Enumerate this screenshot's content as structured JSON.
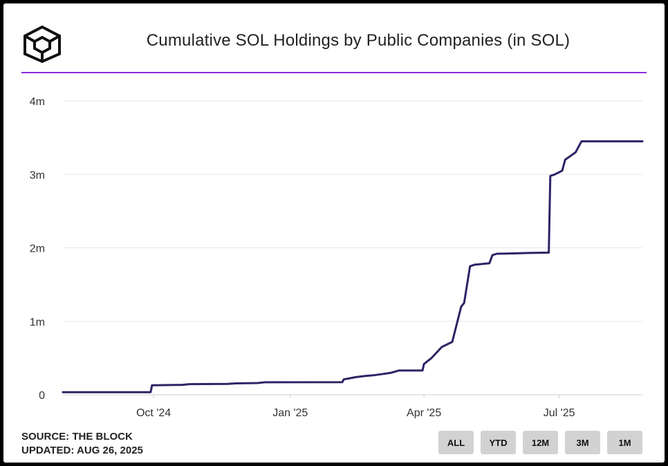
{
  "chart_data": {
    "type": "line",
    "title": "Cumulative SOL Holdings by Public Companies (in SOL)",
    "xlabel": "",
    "ylabel": "",
    "y_ticks": [
      {
        "value": 0,
        "label": "0"
      },
      {
        "value": 1000000,
        "label": "1m"
      },
      {
        "value": 2000000,
        "label": "2m"
      },
      {
        "value": 3000000,
        "label": "3m"
      },
      {
        "value": 4000000,
        "label": "4m"
      }
    ],
    "ylim": [
      0,
      4000000
    ],
    "x_ticks": [
      {
        "date": "2024-10-01",
        "label": "Oct '24"
      },
      {
        "date": "2025-01-01",
        "label": "Jan '25"
      },
      {
        "date": "2025-04-01",
        "label": "Apr '25"
      },
      {
        "date": "2025-07-01",
        "label": "Jul '25"
      }
    ],
    "xlim": [
      "2024-08-01",
      "2025-08-26"
    ],
    "grid": true,
    "series_color": "#2b2464",
    "series": [
      {
        "name": "",
        "points": [
          [
            "2024-08-01",
            35000
          ],
          [
            "2024-09-29",
            35000
          ],
          [
            "2024-09-30",
            130000
          ],
          [
            "2024-10-20",
            135000
          ],
          [
            "2024-10-25",
            145000
          ],
          [
            "2024-11-20",
            148000
          ],
          [
            "2024-11-25",
            155000
          ],
          [
            "2024-12-10",
            160000
          ],
          [
            "2024-12-15",
            170000
          ],
          [
            "2025-02-05",
            172000
          ],
          [
            "2025-02-06",
            210000
          ],
          [
            "2025-02-10",
            225000
          ],
          [
            "2025-02-14",
            240000
          ],
          [
            "2025-02-20",
            255000
          ],
          [
            "2025-02-26",
            265000
          ],
          [
            "2025-03-03",
            280000
          ],
          [
            "2025-03-10",
            300000
          ],
          [
            "2025-03-15",
            330000
          ],
          [
            "2025-03-31",
            330000
          ],
          [
            "2025-04-01",
            420000
          ],
          [
            "2025-04-06",
            500000
          ],
          [
            "2025-04-13",
            650000
          ],
          [
            "2025-04-20",
            720000
          ],
          [
            "2025-04-26",
            1200000
          ],
          [
            "2025-04-28",
            1250000
          ],
          [
            "2025-05-02",
            1750000
          ],
          [
            "2025-05-05",
            1770000
          ],
          [
            "2025-05-15",
            1790000
          ],
          [
            "2025-05-17",
            1900000
          ],
          [
            "2025-05-20",
            1920000
          ],
          [
            "2025-06-01",
            1925000
          ],
          [
            "2025-06-10",
            1930000
          ],
          [
            "2025-06-24",
            1935000
          ],
          [
            "2025-06-25",
            2980000
          ],
          [
            "2025-06-28",
            3000000
          ],
          [
            "2025-07-03",
            3050000
          ],
          [
            "2025-07-05",
            3200000
          ],
          [
            "2025-07-12",
            3300000
          ],
          [
            "2025-07-16",
            3450000
          ],
          [
            "2025-08-26",
            3450000
          ]
        ]
      }
    ]
  },
  "footer": {
    "source": "SOURCE: THE BLOCK",
    "updated": "UPDATED: AUG 26, 2025"
  },
  "range_buttons": [
    "ALL",
    "YTD",
    "12M",
    "3M",
    "1M"
  ]
}
